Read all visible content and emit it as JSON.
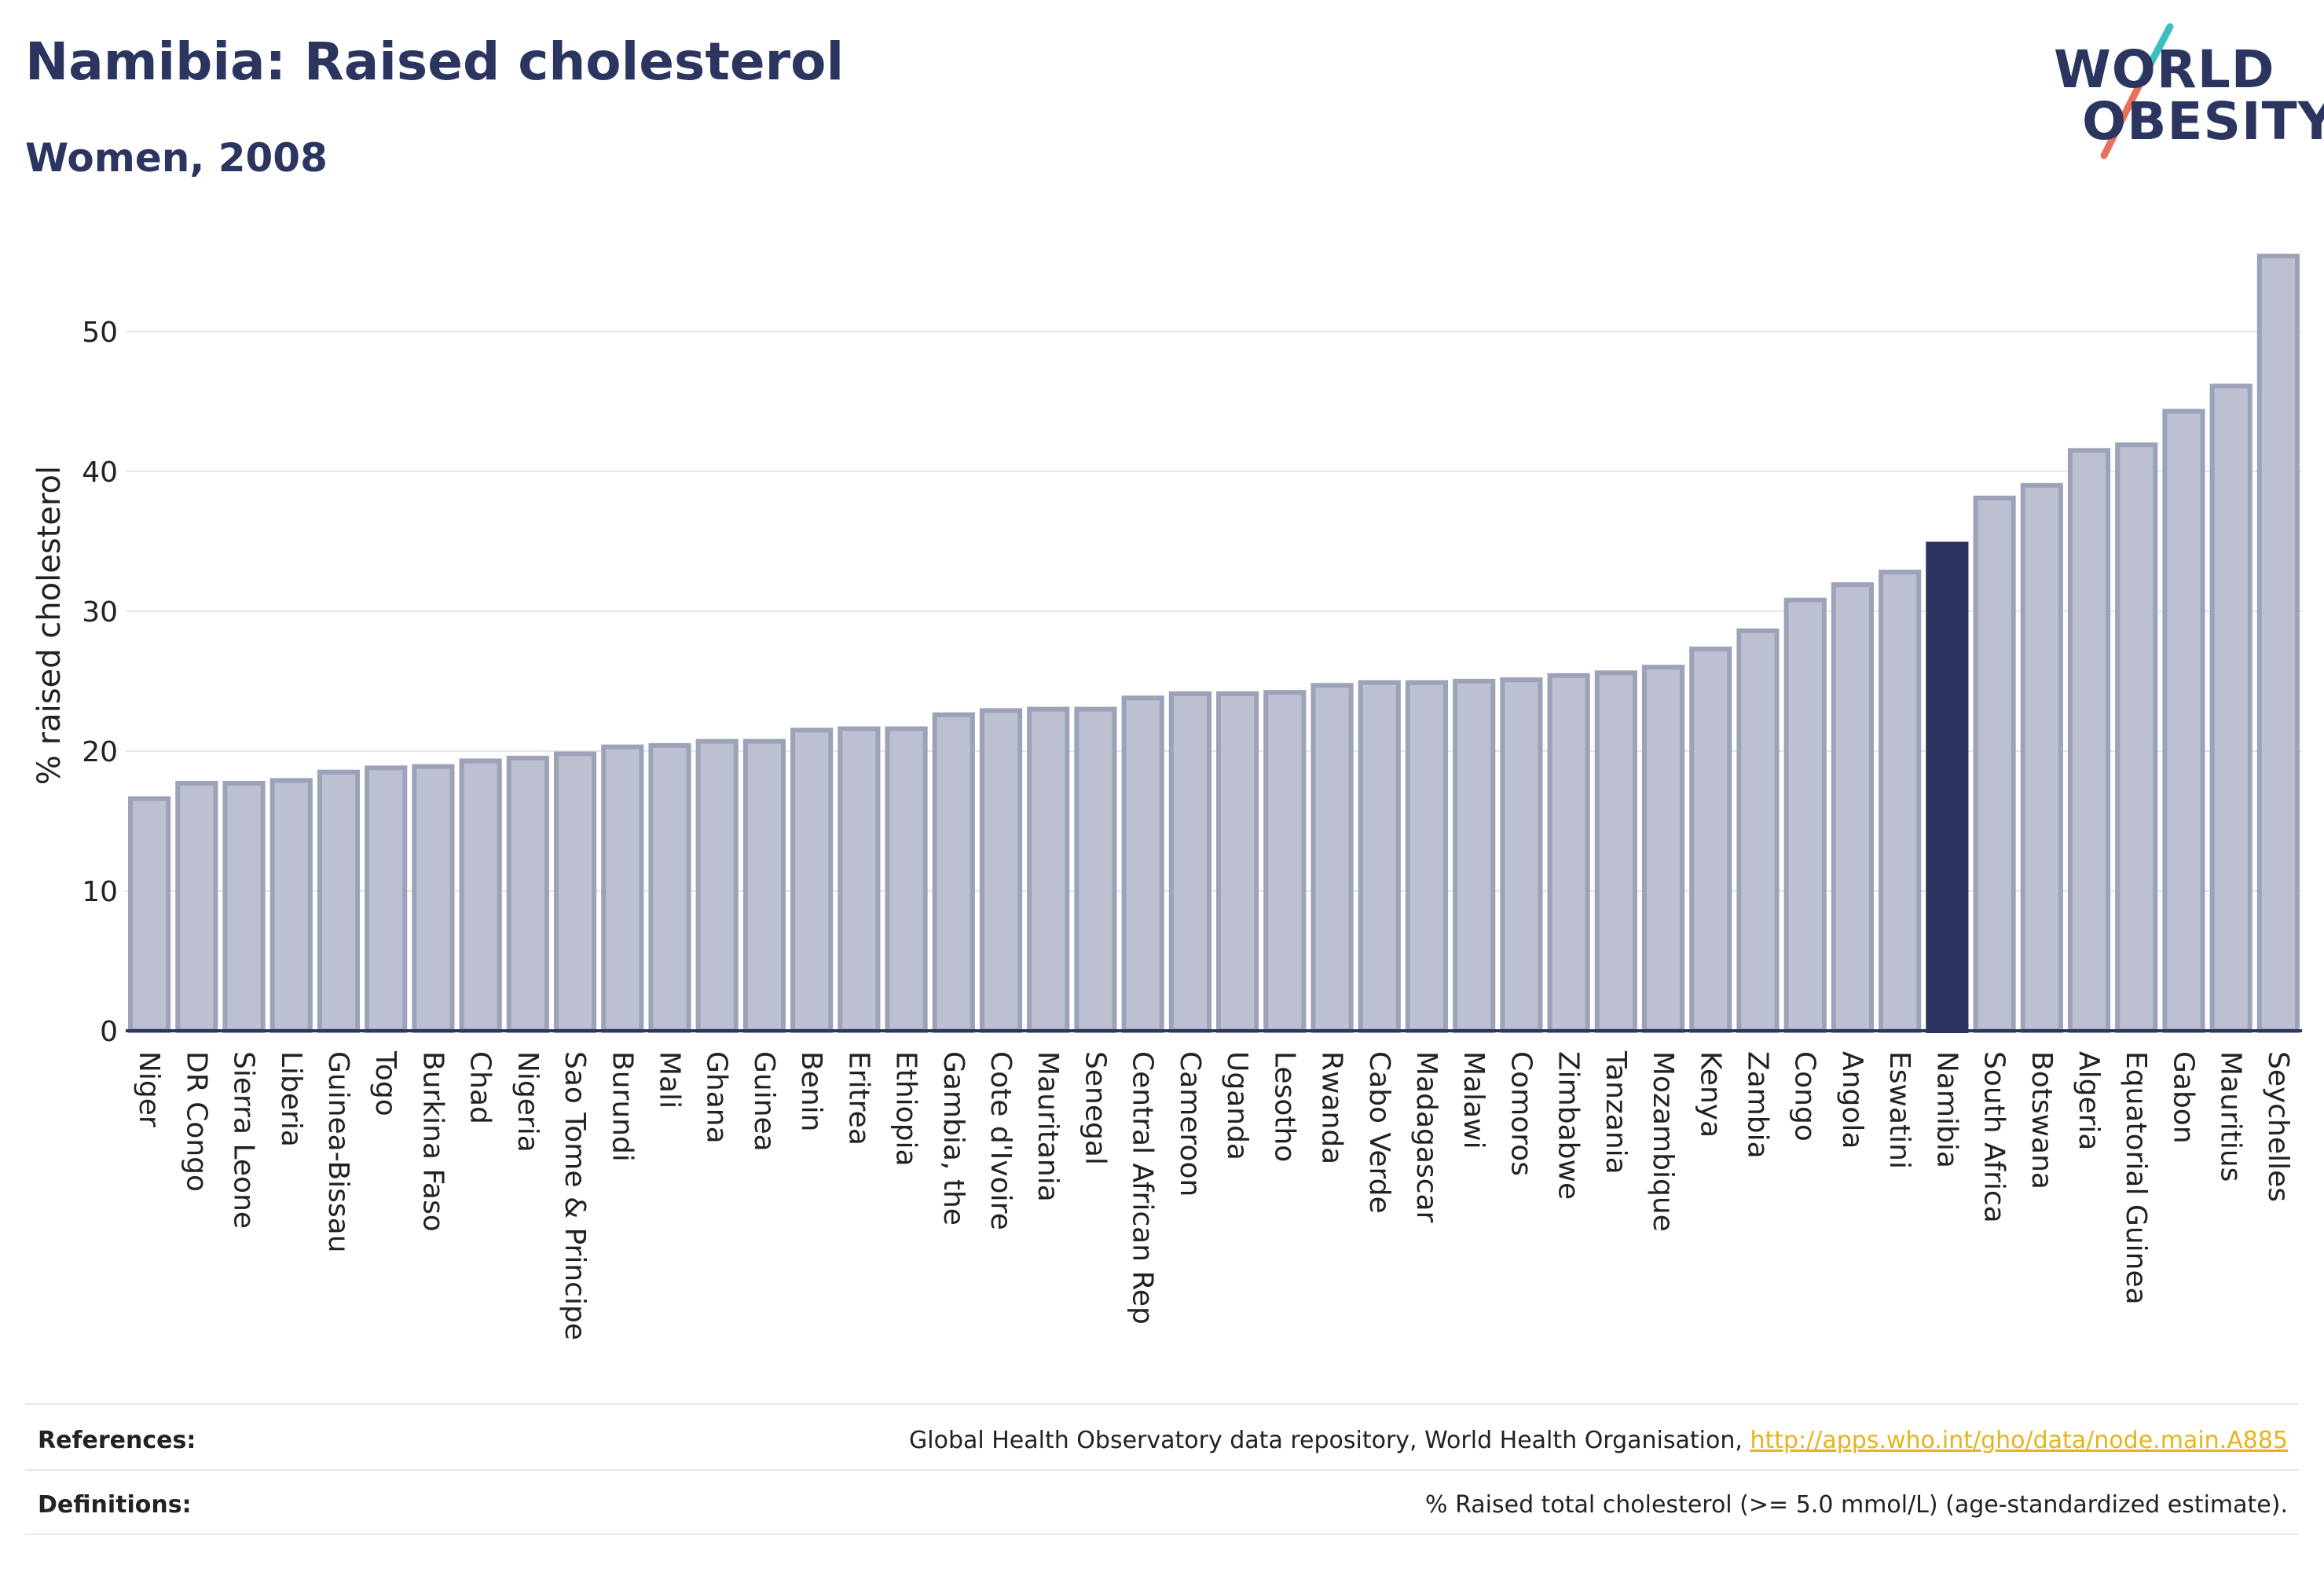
{
  "header": {
    "title": "Namibia: Raised cholesterol",
    "subtitle": "Women, 2008"
  },
  "logo": {
    "line1": "WORLD",
    "line2": "OBESITY"
  },
  "colors": {
    "highlight": "#2b3560",
    "bar_fill": "#bcc0d0",
    "bar_stroke": "#9ca2b8",
    "accent_teal": "#3bbfbf",
    "accent_coral": "#e8715e",
    "link": "#e5b41a"
  },
  "chart_data": {
    "type": "bar",
    "ylabel": "% raised cholesterol",
    "ylim": [
      0,
      56
    ],
    "yticks": [
      0,
      10,
      20,
      30,
      40,
      50
    ],
    "grid": true,
    "highlight": "Namibia",
    "categories": [
      "Niger",
      "DR Congo",
      "Sierra Leone",
      "Liberia",
      "Guinea-Bissau",
      "Togo",
      "Burkina Faso",
      "Chad",
      "Nigeria",
      "Sao Tome & Principe",
      "Burundi",
      "Mali",
      "Ghana",
      "Guinea",
      "Benin",
      "Eritrea",
      "Ethiopia",
      "Gambia, the",
      "Cote d'Ivoire",
      "Mauritania",
      "Senegal",
      "Central African Rep",
      "Cameroon",
      "Uganda",
      "Lesotho",
      "Rwanda",
      "Cabo Verde",
      "Madagascar",
      "Malawi",
      "Comoros",
      "Zimbabwe",
      "Tanzania",
      "Mozambique",
      "Kenya",
      "Zambia",
      "Congo",
      "Angola",
      "Eswatini",
      "Namibia",
      "South Africa",
      "Botswana",
      "Algeria",
      "Equatorial Guinea",
      "Gabon",
      "Mauritius",
      "Seychelles"
    ],
    "values": [
      16.6,
      17.7,
      17.7,
      17.9,
      18.5,
      18.8,
      18.9,
      19.3,
      19.5,
      19.8,
      20.3,
      20.4,
      20.7,
      20.7,
      21.5,
      21.6,
      21.6,
      22.6,
      22.9,
      23.0,
      23.0,
      23.8,
      24.1,
      24.1,
      24.2,
      24.7,
      24.9,
      24.9,
      25.0,
      25.1,
      25.4,
      25.6,
      26.0,
      27.3,
      28.6,
      30.8,
      31.9,
      32.8,
      34.8,
      38.1,
      39.0,
      41.5,
      41.9,
      44.3,
      46.1,
      55.4
    ]
  },
  "footer": {
    "references_label": "References:",
    "references_text": "Global Health Observatory data repository, World Health Organisation, ",
    "references_link": "http://apps.who.int/gho/data/node.main.A885",
    "definitions_label": "Definitions:",
    "definitions_text": "% Raised total cholesterol (>= 5.0 mmol/L) (age-standardized estimate)."
  }
}
